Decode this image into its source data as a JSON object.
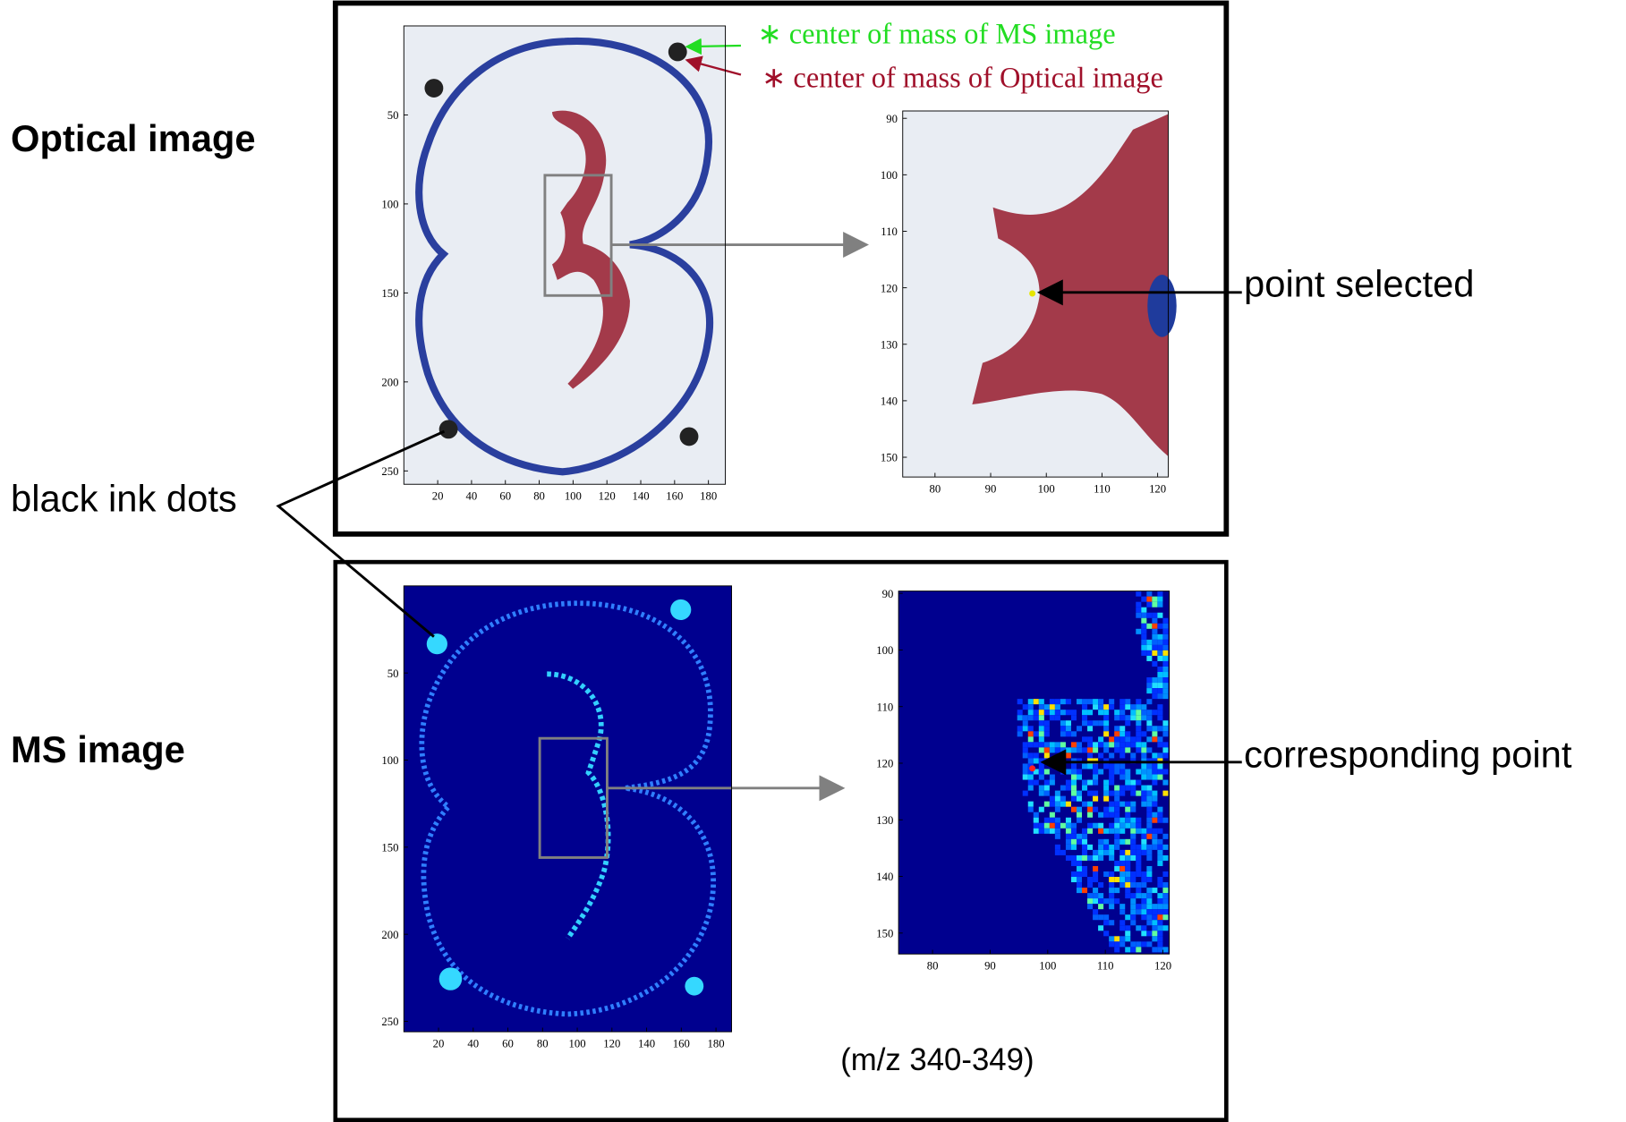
{
  "labels": {
    "optical": "Optical image",
    "ms": "MS image",
    "ink_dots": "black ink dots",
    "point_selected": "point selected",
    "corresponding_point": "corresponding point",
    "mz_range": "(m/z 340-349)",
    "legend_ms": "∗ center of mass of MS image",
    "legend_optical": "∗ center of mass of Optical image"
  },
  "panels": [
    {
      "xlim": [
        0,
        190
      ],
      "ylim": [
        0,
        257.5
      ],
      "xticks": [
        20,
        40,
        60,
        80,
        100,
        120,
        140,
        160,
        180
      ],
      "yticks": [
        50,
        100,
        150,
        200,
        250
      ]
    },
    {
      "xlim": [
        74.2,
        121.9
      ],
      "ylim": [
        88.7,
        153.5
      ],
      "xticks": [
        80,
        90,
        100,
        110,
        120
      ],
      "yticks": [
        90,
        100,
        110,
        120,
        130,
        140,
        150
      ]
    },
    {
      "xlim": [
        0,
        189
      ],
      "ylim": [
        0,
        256
      ],
      "xticks": [
        20,
        40,
        60,
        80,
        100,
        120,
        140,
        160,
        180
      ],
      "yticks": [
        50,
        100,
        150,
        200,
        250
      ]
    },
    {
      "xlim": [
        74.1,
        121.1
      ],
      "ylim": [
        89.6,
        153.7
      ],
      "xticks": [
        80,
        90,
        100,
        110,
        120
      ],
      "yticks": [
        90,
        100,
        110,
        120,
        130,
        140,
        150
      ]
    }
  ]
}
